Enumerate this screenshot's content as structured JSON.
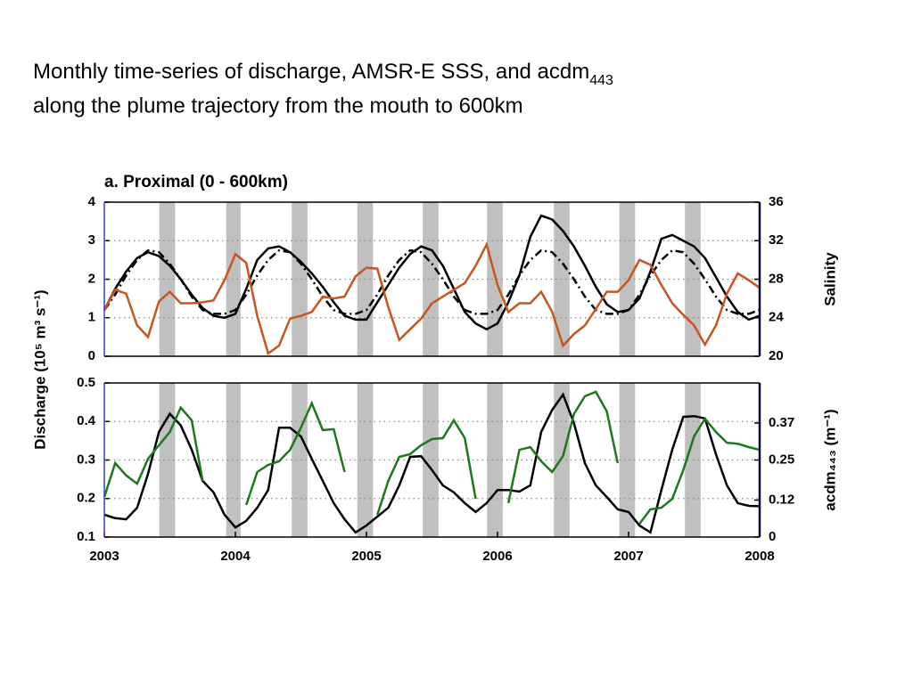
{
  "title_line1": "Monthly time-series of discharge, AMSR-E SSS, and acdm",
  "title_sub": "443",
  "title_line2": "along the plume trajectory from the mouth to 600km",
  "ylabel": "Discharge (10⁵ m³ s⁻¹)",
  "shade_color": "#c0c0c0",
  "shaded_x": [
    [
      2003.42,
      2003.54
    ],
    [
      2003.93,
      2004.04
    ],
    [
      2004.43,
      2004.55
    ],
    [
      2004.93,
      2005.05
    ],
    [
      2005.43,
      2005.55
    ],
    [
      2005.92,
      2006.04
    ],
    [
      2006.43,
      2006.55
    ],
    [
      2006.93,
      2007.05
    ],
    [
      2007.43,
      2007.55
    ]
  ],
  "chart_data": [
    {
      "type": "line",
      "title": "a. Proximal (0 - 600km)",
      "y2label": "Salinity",
      "y2label_color": "#c9541e",
      "xlim": [
        2003,
        2008
      ],
      "ylim": [
        0,
        4
      ],
      "yticks": [
        0,
        1,
        2,
        3,
        4
      ],
      "y2lim": [
        20,
        36
      ],
      "y2ticks": [
        20,
        24,
        28,
        32,
        36
      ],
      "grid": true,
      "x": [
        2003,
        2003.083,
        2003.167,
        2003.25,
        2003.333,
        2003.417,
        2003.5,
        2003.583,
        2003.667,
        2003.75,
        2003.833,
        2003.917,
        2004,
        2004.083,
        2004.167,
        2004.25,
        2004.333,
        2004.417,
        2004.5,
        2004.583,
        2004.667,
        2004.75,
        2004.833,
        2004.917,
        2005,
        2005.083,
        2005.167,
        2005.25,
        2005.333,
        2005.417,
        2005.5,
        2005.583,
        2005.667,
        2005.75,
        2005.833,
        2005.917,
        2006,
        2006.083,
        2006.167,
        2006.25,
        2006.333,
        2006.417,
        2006.5,
        2006.583,
        2006.667,
        2006.75,
        2006.833,
        2006.917,
        2007,
        2007.083,
        2007.167,
        2007.25,
        2007.333,
        2007.417,
        2007.5,
        2007.583,
        2007.667,
        2007.75,
        2007.833,
        2007.917,
        2008
      ],
      "series": [
        {
          "color": "#000000",
          "linestyle": "solid",
          "values": [
            1.2,
            1.75,
            2.2,
            2.55,
            2.7,
            2.6,
            2.35,
            2.0,
            1.6,
            1.25,
            1.05,
            1.0,
            1.1,
            1.75,
            2.5,
            2.8,
            2.85,
            2.7,
            2.45,
            2.15,
            1.8,
            1.4,
            1.05,
            0.95,
            0.95,
            1.4,
            1.85,
            2.3,
            2.65,
            2.85,
            2.75,
            2.35,
            1.75,
            1.15,
            0.85,
            0.7,
            0.85,
            1.4,
            2.1,
            3.1,
            3.65,
            3.55,
            3.25,
            2.85,
            2.35,
            1.8,
            1.35,
            1.15,
            1.2,
            1.5,
            2.2,
            3.05,
            3.15,
            3.0,
            2.85,
            2.55,
            2.05,
            1.55,
            1.15,
            0.95,
            1.05
          ]
        },
        {
          "color": "#000000",
          "linestyle": "dashed",
          "values": [
            1.2,
            1.6,
            2.1,
            2.5,
            2.75,
            2.7,
            2.4,
            2.0,
            1.55,
            1.2,
            1.1,
            1.1,
            1.2,
            1.6,
            2.1,
            2.5,
            2.75,
            2.7,
            2.4,
            2.0,
            1.55,
            1.2,
            1.1,
            1.1,
            1.2,
            1.6,
            2.1,
            2.5,
            2.75,
            2.7,
            2.4,
            2.0,
            1.55,
            1.2,
            1.1,
            1.1,
            1.2,
            1.6,
            2.1,
            2.5,
            2.75,
            2.7,
            2.4,
            2.0,
            1.55,
            1.2,
            1.1,
            1.1,
            1.2,
            1.6,
            2.1,
            2.5,
            2.75,
            2.7,
            2.4,
            2.0,
            1.55,
            1.2,
            1.1,
            1.1,
            1.2
          ]
        },
        {
          "color": "#c9541e",
          "linestyle": "solid",
          "axis": "y2",
          "values": [
            24.8,
            26.9,
            26.5,
            23.2,
            22.0,
            25.7,
            26.7,
            25.5,
            25.5,
            25.6,
            25.8,
            27.9,
            30.6,
            29.7,
            24.2,
            20.3,
            21.1,
            23.9,
            24.2,
            24.6,
            26.2,
            26.0,
            26.2,
            28.3,
            29.2,
            29.1,
            25.1,
            21.7,
            22.8,
            23.9,
            25.5,
            26.2,
            26.9,
            27.6,
            29.4,
            31.6,
            27.4,
            24.6,
            25.5,
            25.5,
            26.7,
            24.6,
            21.1,
            22.3,
            23.2,
            24.9,
            26.7,
            26.7,
            27.9,
            30.0,
            29.5,
            27.4,
            25.5,
            24.3,
            23.2,
            21.2,
            23.2,
            26.5,
            28.6,
            27.9,
            27.1
          ]
        }
      ]
    },
    {
      "type": "line",
      "y2label": "acdm₄₄₃ (m⁻¹)",
      "y2label_color": "#1a7a1a",
      "xlim": [
        2003,
        2008
      ],
      "xticks": [
        2003,
        2004,
        2005,
        2006,
        2007,
        2008
      ],
      "ylim": [
        0.1,
        0.5
      ],
      "yticks": [
        0.1,
        0.2,
        0.3,
        0.4,
        0.5
      ],
      "y2lim": [
        0,
        0.5
      ],
      "y2ticks": [
        0,
        0.12,
        0.25,
        0.37
      ],
      "grid": true,
      "x": [
        2003,
        2003.083,
        2003.167,
        2003.25,
        2003.333,
        2003.417,
        2003.5,
        2003.583,
        2003.667,
        2003.75,
        2003.833,
        2003.917,
        2004,
        2004.083,
        2004.167,
        2004.25,
        2004.333,
        2004.417,
        2004.5,
        2004.583,
        2004.667,
        2004.75,
        2004.833,
        2004.917,
        2005,
        2005.083,
        2005.167,
        2005.25,
        2005.333,
        2005.417,
        2005.5,
        2005.583,
        2005.667,
        2005.75,
        2005.833,
        2005.917,
        2006,
        2006.083,
        2006.167,
        2006.25,
        2006.333,
        2006.417,
        2006.5,
        2006.583,
        2006.667,
        2006.75,
        2006.833,
        2006.917,
        2007,
        2007.083,
        2007.167,
        2007.25,
        2007.333,
        2007.417,
        2007.5,
        2007.583,
        2007.667,
        2007.75,
        2007.833,
        2007.917,
        2008
      ],
      "series": [
        {
          "color": "#000000",
          "linestyle": "solid",
          "values": [
            0.158,
            0.149,
            0.146,
            0.176,
            0.264,
            0.373,
            0.42,
            0.39,
            0.327,
            0.246,
            0.216,
            0.158,
            0.125,
            0.142,
            0.176,
            0.222,
            0.384,
            0.384,
            0.361,
            0.303,
            0.246,
            0.188,
            0.146,
            0.112,
            0.13,
            0.153,
            0.176,
            0.234,
            0.308,
            0.31,
            0.274,
            0.234,
            0.216,
            0.188,
            0.165,
            0.188,
            0.222,
            0.222,
            0.218,
            0.234,
            0.373,
            0.43,
            0.47,
            0.396,
            0.292,
            0.234,
            0.204,
            0.172,
            0.165,
            0.13,
            0.112,
            0.222,
            0.327,
            0.412,
            0.414,
            0.408,
            0.315,
            0.234,
            0.188,
            0.181,
            0.18
          ]
        },
        {
          "color": "#1a7a1a",
          "linestyle": "solid",
          "axis": "y2",
          "values": [
            0.13,
            0.24,
            0.2,
            0.173,
            0.254,
            0.298,
            0.341,
            0.42,
            0.379,
            0.182,
            null,
            null,
            null,
            0.104,
            0.211,
            0.234,
            0.246,
            0.283,
            0.355,
            0.434,
            0.347,
            0.35,
            0.211,
            null,
            null,
            0.072,
            0.182,
            0.26,
            0.269,
            0.298,
            0.318,
            0.321,
            0.379,
            0.321,
            0.124,
            null,
            null,
            0.11,
            0.283,
            0.292,
            0.246,
            0.211,
            0.263,
            0.399,
            0.457,
            0.471,
            0.408,
            0.24,
            null,
            0.043,
            0.09,
            0.095,
            0.124,
            0.217,
            0.327,
            0.384,
            0.341,
            0.306,
            0.303,
            0.292,
            0.283
          ]
        }
      ]
    }
  ]
}
